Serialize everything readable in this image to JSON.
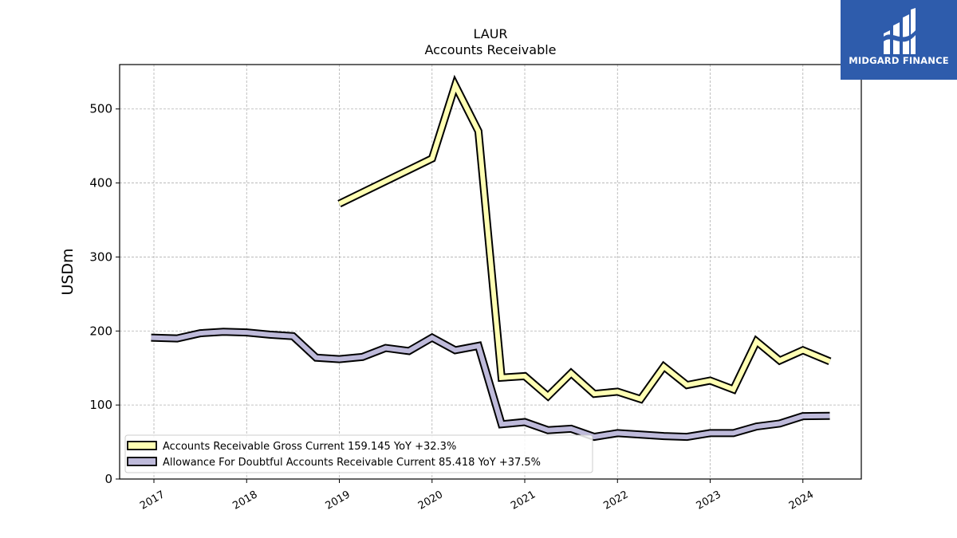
{
  "chart_data": {
    "type": "line",
    "title": "LAUR",
    "subtitle": "Accounts Receivable",
    "ylabel": "USDm",
    "xlabel": "",
    "ylim": [
      0,
      560
    ],
    "yticks": [
      0,
      100,
      200,
      300,
      400,
      500
    ],
    "xlim": [
      2016.63,
      2024.63
    ],
    "xticks": [
      {
        "label": "2017",
        "value": 2017.0
      },
      {
        "label": "2018",
        "value": 2018.0
      },
      {
        "label": "2019",
        "value": 2019.0
      },
      {
        "label": "2020",
        "value": 2020.0
      },
      {
        "label": "2021",
        "value": 2021.0
      },
      {
        "label": "2022",
        "value": 2022.0
      },
      {
        "label": "2023",
        "value": 2023.0
      },
      {
        "label": "2024",
        "value": 2024.0
      }
    ],
    "grid": true,
    "legend_position": "lower-left",
    "series": [
      {
        "name": "Accounts Receivable Gross Current",
        "legend": "Accounts Receivable Gross Current  159.145 YoY +32.3%",
        "color": "#ffffb3",
        "points": [
          [
            2019.0,
            372
          ],
          [
            2020.0,
            433
          ],
          [
            2020.25,
            532
          ],
          [
            2020.5,
            470
          ],
          [
            2020.75,
            137
          ],
          [
            2021.0,
            139
          ],
          [
            2021.25,
            112
          ],
          [
            2021.5,
            143
          ],
          [
            2021.75,
            115
          ],
          [
            2022.0,
            118
          ],
          [
            2022.25,
            108
          ],
          [
            2022.5,
            152
          ],
          [
            2022.75,
            127
          ],
          [
            2023.0,
            133
          ],
          [
            2023.25,
            121
          ],
          [
            2023.5,
            186
          ],
          [
            2023.75,
            160
          ],
          [
            2024.0,
            174
          ],
          [
            2024.29,
            159
          ]
        ]
      },
      {
        "name": "Allowance For Doubtful Accounts Receivable Current",
        "legend": "Allowance For Doubtful Accounts Receivable Current  85.418 YoY +37.5%",
        "color": "#bebada",
        "points": [
          [
            2016.97,
            191
          ],
          [
            2017.25,
            190
          ],
          [
            2017.5,
            197
          ],
          [
            2017.75,
            199
          ],
          [
            2018.0,
            198
          ],
          [
            2018.25,
            195
          ],
          [
            2018.5,
            193
          ],
          [
            2018.75,
            164
          ],
          [
            2019.0,
            162
          ],
          [
            2019.25,
            165
          ],
          [
            2019.5,
            177
          ],
          [
            2019.75,
            173
          ],
          [
            2020.0,
            191
          ],
          [
            2020.25,
            174
          ],
          [
            2020.5,
            180
          ],
          [
            2020.75,
            74
          ],
          [
            2021.0,
            77
          ],
          [
            2021.25,
            66
          ],
          [
            2021.5,
            68
          ],
          [
            2021.75,
            57
          ],
          [
            2022.0,
            62
          ],
          [
            2022.25,
            60
          ],
          [
            2022.5,
            58
          ],
          [
            2022.75,
            57
          ],
          [
            2023.0,
            62
          ],
          [
            2023.25,
            62
          ],
          [
            2023.5,
            71
          ],
          [
            2023.75,
            75
          ],
          [
            2024.0,
            85
          ],
          [
            2024.29,
            85.4
          ]
        ]
      }
    ]
  },
  "logo": {
    "text": "MIDGARD FINANCE",
    "background": "#2e5cac"
  }
}
